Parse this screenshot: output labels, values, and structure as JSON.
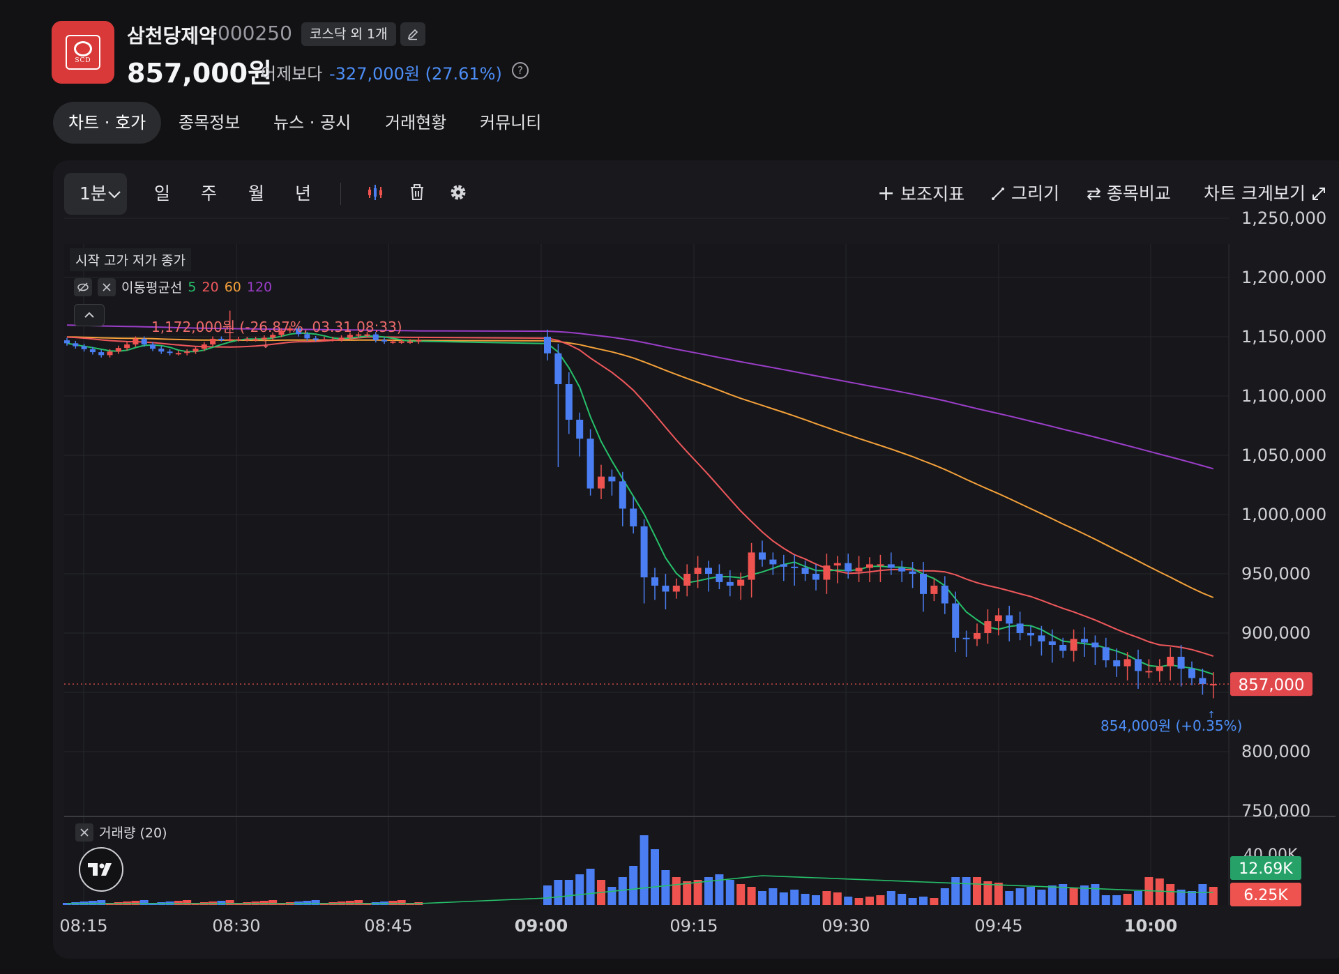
{
  "header": {
    "stock_name": "삼천당제약",
    "stock_code": "000250",
    "market_badge": "코스닥 외 1개",
    "logo_text": "SCD",
    "price": "857,000원",
    "change_label": "어제보다",
    "change_value": "-327,000원 (27.61%)",
    "help_label": "?"
  },
  "tabs": [
    "차트 · 호가",
    "종목정보",
    "뉴스 · 공시",
    "거래현황",
    "커뮤니티"
  ],
  "toolbar": {
    "interval": "1분",
    "periods": [
      "일",
      "주",
      "월",
      "년"
    ],
    "indicator_label": "보조지표",
    "draw_label": "그리기",
    "compare_label": "종목비교",
    "expand_label": "차트 크게보기"
  },
  "legend": {
    "ohlc": "시작 고가 저가 종가",
    "ma_title": "이동평균선",
    "ma_periods": [
      "5",
      "20",
      "60",
      "120"
    ],
    "volume_title": "거래량 (20)"
  },
  "annotations": {
    "high": "1,172,000원 (-26.87%, 03.31 08:33)",
    "low": "854,000원 (+0.35%)"
  },
  "colors": {
    "up": "#ef5350",
    "down": "#4a7ef2",
    "ma5": "#26c06a",
    "ma20": "#f0585c",
    "ma60": "#f5a13a",
    "ma120": "#9b3ec9"
  },
  "chart_data": {
    "type": "candlestick",
    "x_ticks": [
      "08:15",
      "08:30",
      "08:45",
      "09:00",
      "09:15",
      "09:30",
      "09:45",
      "10:00"
    ],
    "y_ticks": [
      "1,250,000",
      "1,200,000",
      "1,150,000",
      "1,100,000",
      "1,050,000",
      "1,000,000",
      "950,000",
      "900,000",
      "800,000",
      "750,000"
    ],
    "ylim": [
      750000,
      1250000
    ],
    "current_price": 857000,
    "current_price_label": "857,000",
    "volume_axis": [
      "40.00K"
    ],
    "volume_labels": [
      {
        "value": "12.69K",
        "color": "#26a269"
      },
      {
        "value": "6.25K",
        "color": "#ef5350"
      }
    ],
    "candles_close_0900_onward": [
      1136000,
      1110000,
      1080000,
      1064000,
      1022000,
      1032000,
      1028000,
      1005000,
      990000,
      947000,
      940000,
      935000,
      940000,
      950000,
      955000,
      950000,
      943000,
      940000,
      945000,
      968000,
      962000,
      958000,
      956000,
      955000,
      950000,
      945000,
      957000,
      959000,
      952000,
      955000,
      958000,
      958000,
      955000,
      952000,
      950000,
      933000,
      940000,
      925000,
      896000,
      895000,
      900000,
      910000,
      915000,
      908000,
      900000,
      898000,
      893000,
      890000,
      885000,
      895000,
      892000,
      888000,
      877000,
      872000,
      878000,
      868000,
      868000,
      872000,
      880000,
      870000,
      862000,
      857000,
      857000
    ],
    "ma_series": [
      {
        "name": "5",
        "color": "#26c06a"
      },
      {
        "name": "20",
        "color": "#f0585c"
      },
      {
        "name": "60",
        "color": "#f5a13a"
      },
      {
        "name": "120",
        "color": "#9b3ec9"
      }
    ]
  }
}
